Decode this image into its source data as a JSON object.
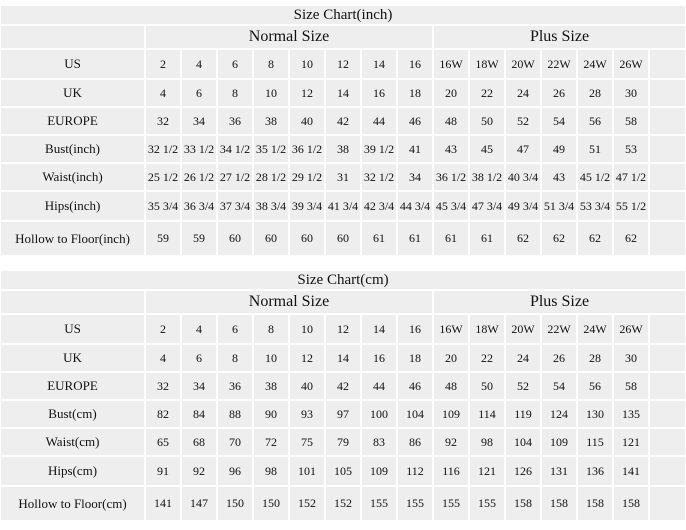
{
  "tables": [
    {
      "title": "Size Chart(inch)",
      "groups": [
        "Normal Size",
        "Plus Size"
      ],
      "rows": [
        {
          "label": "US",
          "cells": [
            "2",
            "4",
            "6",
            "8",
            "10",
            "12",
            "14",
            "16",
            "16W",
            "18W",
            "20W",
            "22W",
            "24W",
            "26W"
          ]
        },
        {
          "label": "UK",
          "cells": [
            "4",
            "6",
            "8",
            "10",
            "12",
            "14",
            "16",
            "18",
            "20",
            "22",
            "24",
            "26",
            "28",
            "30"
          ]
        },
        {
          "label": "EUROPE",
          "cells": [
            "32",
            "34",
            "36",
            "38",
            "40",
            "42",
            "44",
            "46",
            "48",
            "50",
            "52",
            "54",
            "56",
            "58"
          ]
        },
        {
          "label": "Bust(inch)",
          "cells": [
            "32 1/2",
            "33 1/2",
            "34 1/2",
            "35 1/2",
            "36 1/2",
            "38",
            "39 1/2",
            "41",
            "43",
            "45",
            "47",
            "49",
            "51",
            "53"
          ]
        },
        {
          "label": "Waist(inch)",
          "cells": [
            "25 1/2",
            "26 1/2",
            "27 1/2",
            "28 1/2",
            "29 1/2",
            "31",
            "32 1/2",
            "34",
            "36 1/2",
            "38 1/2",
            "40 3/4",
            "43",
            "45 1/2",
            "47 1/2"
          ]
        },
        {
          "label": "Hips(inch)",
          "cells": [
            "35 3/4",
            "36 3/4",
            "37 3/4",
            "38 3/4",
            "39 3/4",
            "41 3/4",
            "42 3/4",
            "44 3/4",
            "45 3/4",
            "47 3/4",
            "49 3/4",
            "51 3/4",
            "53 3/4",
            "55 1/2"
          ]
        },
        {
          "label": "Hollow to Floor(inch)",
          "cells": [
            "59",
            "59",
            "60",
            "60",
            "60",
            "60",
            "61",
            "61",
            "61",
            "61",
            "62",
            "62",
            "62",
            "62"
          ]
        }
      ]
    },
    {
      "title": "Size Chart(cm)",
      "groups": [
        "Normal Size",
        "Plus Size"
      ],
      "rows": [
        {
          "label": "US",
          "cells": [
            "2",
            "4",
            "6",
            "8",
            "10",
            "12",
            "14",
            "16",
            "16W",
            "18W",
            "20W",
            "22W",
            "24W",
            "26W"
          ]
        },
        {
          "label": "UK",
          "cells": [
            "4",
            "6",
            "8",
            "10",
            "12",
            "14",
            "16",
            "18",
            "20",
            "22",
            "24",
            "26",
            "28",
            "30"
          ]
        },
        {
          "label": "EUROPE",
          "cells": [
            "32",
            "34",
            "36",
            "38",
            "40",
            "42",
            "44",
            "46",
            "48",
            "50",
            "52",
            "54",
            "56",
            "58"
          ]
        },
        {
          "label": "Bust(cm)",
          "cells": [
            "82",
            "84",
            "88",
            "90",
            "93",
            "97",
            "100",
            "104",
            "109",
            "114",
            "119",
            "124",
            "130",
            "135"
          ]
        },
        {
          "label": "Waist(cm)",
          "cells": [
            "65",
            "68",
            "70",
            "72",
            "75",
            "79",
            "83",
            "86",
            "92",
            "98",
            "104",
            "109",
            "115",
            "121"
          ]
        },
        {
          "label": "Hips(cm)",
          "cells": [
            "91",
            "92",
            "96",
            "98",
            "101",
            "105",
            "109",
            "112",
            "116",
            "121",
            "126",
            "131",
            "136",
            "141"
          ]
        },
        {
          "label": "Hollow to Floor(cm)",
          "cells": [
            "141",
            "147",
            "150",
            "150",
            "152",
            "152",
            "155",
            "155",
            "155",
            "155",
            "158",
            "158",
            "158",
            "158"
          ]
        }
      ]
    }
  ]
}
